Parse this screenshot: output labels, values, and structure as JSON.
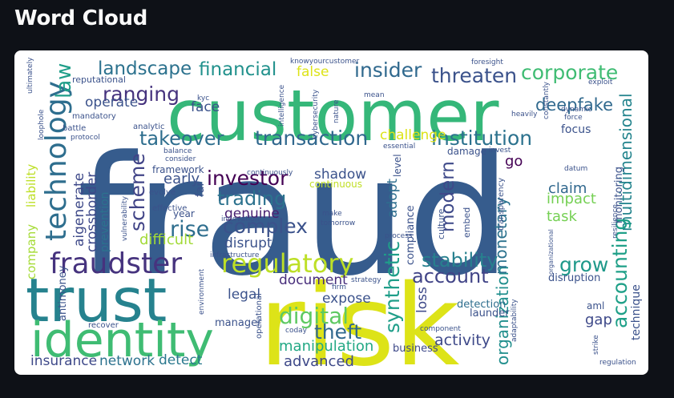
{
  "header": {
    "title": "Word Cloud"
  },
  "palette": {
    "page_bg": "#0e1117",
    "card_bg": "#ffffff",
    "title_color": "#fafafa"
  },
  "wordcloud": {
    "words": [
      {
        "text": "fraud",
        "color": "#365c8d"
      },
      {
        "text": "customer",
        "color": "#35b779"
      },
      {
        "text": "risk",
        "color": "#dde318"
      },
      {
        "text": "trust",
        "color": "#26828e"
      },
      {
        "text": "identity",
        "color": "#3fbc73"
      },
      {
        "text": "fraudster",
        "color": "#46337e"
      },
      {
        "text": "regulatory",
        "color": "#bddf26"
      },
      {
        "text": "technology",
        "color": "#2e6e8e"
      },
      {
        "text": "financial",
        "color": "#21918c"
      },
      {
        "text": "corporate",
        "color": "#3fbc73"
      },
      {
        "text": "insider",
        "color": "#30698e"
      },
      {
        "text": "threaten",
        "color": "#3b528b"
      },
      {
        "text": "landscape",
        "color": "#2c728e"
      },
      {
        "text": "ranging",
        "color": "#46337e"
      },
      {
        "text": "deepfake",
        "color": "#30698e"
      },
      {
        "text": "institution",
        "color": "#2c728e"
      },
      {
        "text": "takeover",
        "color": "#2e6e8e"
      },
      {
        "text": "transaction",
        "color": "#31688e"
      },
      {
        "text": "multidimensional",
        "color": "#25858e"
      },
      {
        "text": "investor",
        "color": "#440154"
      },
      {
        "text": "trading",
        "color": "#2c728e"
      },
      {
        "text": "complex",
        "color": "#3b528b"
      },
      {
        "text": "scheme",
        "color": "#414487"
      },
      {
        "text": "rise",
        "color": "#2e6e8e"
      },
      {
        "text": "stability",
        "color": "#27808e"
      },
      {
        "text": "account",
        "color": "#414487"
      },
      {
        "text": "grow",
        "color": "#1f998a"
      },
      {
        "text": "accounting",
        "color": "#1fa088"
      },
      {
        "text": "synthetic",
        "color": "#1f9e89"
      },
      {
        "text": "modern",
        "color": "#3e4989"
      },
      {
        "text": "digital",
        "color": "#5ec962"
      },
      {
        "text": "theft",
        "color": "#31688e"
      },
      {
        "text": "manipulation",
        "color": "#22a884"
      },
      {
        "text": "advanced",
        "color": "#3e4989"
      },
      {
        "text": "document",
        "color": "#472d7b"
      },
      {
        "text": "activity",
        "color": "#3e4989"
      },
      {
        "text": "organization",
        "color": "#218f8d"
      },
      {
        "text": "monetary",
        "color": "#2c728e"
      },
      {
        "text": "claim",
        "color": "#31688e"
      },
      {
        "text": "impact",
        "color": "#75d054"
      },
      {
        "text": "task",
        "color": "#75d054"
      },
      {
        "text": "genuine",
        "color": "#481f70"
      },
      {
        "text": "disrupt",
        "color": "#3b528b"
      },
      {
        "text": "legal",
        "color": "#3b528b"
      },
      {
        "text": "expose",
        "color": "#3b528b"
      },
      {
        "text": "detect",
        "color": "#2a788e"
      },
      {
        "text": "insurance",
        "color": "#3e4989"
      },
      {
        "text": "network",
        "color": "#2c728e"
      },
      {
        "text": "operate",
        "color": "#3b528b"
      },
      {
        "text": "face",
        "color": "#3b528b"
      },
      {
        "text": "early",
        "color": "#3b528b"
      },
      {
        "text": "difficult",
        "color": "#a2da37"
      },
      {
        "text": "aigenerate",
        "color": "#3e4989"
      },
      {
        "text": "crossborder",
        "color": "#3e4989"
      },
      {
        "text": "prevention",
        "color": "#2c728e"
      },
      {
        "text": "company",
        "color": "#a5db36"
      },
      {
        "text": "liability",
        "color": "#bddf26"
      },
      {
        "text": "law",
        "color": "#1f9e89"
      },
      {
        "text": "shadow",
        "color": "#3b528b"
      },
      {
        "text": "continuous",
        "color": "#c0df25"
      },
      {
        "text": "adopt",
        "color": "#2e6e8e"
      },
      {
        "text": "go",
        "color": "#440154"
      },
      {
        "text": "false",
        "color": "#dde318"
      },
      {
        "text": "challenge",
        "color": "#dde318"
      },
      {
        "text": "loss",
        "color": "#3e4989"
      },
      {
        "text": "detection",
        "color": "#2e6e8e"
      },
      {
        "text": "launder",
        "color": "#3b528b"
      },
      {
        "text": "gap",
        "color": "#3e4989"
      },
      {
        "text": "technique",
        "color": "#3b528b"
      },
      {
        "text": "focus",
        "color": "#3b528b"
      },
      {
        "text": "monitoring",
        "color": "#3b528b"
      },
      {
        "text": "disruption",
        "color": "#3b528b"
      },
      {
        "text": "business",
        "color": "#3e4989"
      },
      {
        "text": "manager",
        "color": "#3b528b"
      },
      {
        "text": "antimoney",
        "color": "#3b528b"
      },
      {
        "text": "framework",
        "color": "#3b528b"
      },
      {
        "text": "year",
        "color": "#3b528b"
      },
      {
        "text": "compliance",
        "color": "#3b528b"
      },
      {
        "text": "culture",
        "color": "#3b528b"
      },
      {
        "text": "embed",
        "color": "#3b528b"
      },
      {
        "text": "damage",
        "color": "#3b528b"
      },
      {
        "text": "aml",
        "color": "#3b528b"
      },
      {
        "text": "far",
        "color": "#3b528b"
      },
      {
        "text": "level",
        "color": "#3b528b"
      },
      {
        "text": "reputational",
        "color": "#3b528b"
      },
      {
        "text": "mandatory",
        "color": "#3b528b"
      },
      {
        "text": "battle",
        "color": "#3b528b"
      },
      {
        "text": "analytic",
        "color": "#3b528b"
      },
      {
        "text": "balance",
        "color": "#3b528b"
      },
      {
        "text": "consider",
        "color": "#3b528b"
      },
      {
        "text": "evolve",
        "color": "#3b528b"
      },
      {
        "text": "effective",
        "color": "#3b528b"
      },
      {
        "text": "innovation",
        "color": "#3b528b"
      },
      {
        "text": "infrastructure",
        "color": "#3b528b"
      },
      {
        "text": "continuously",
        "color": "#3b528b"
      },
      {
        "text": "make",
        "color": "#3b528b"
      },
      {
        "text": "tomorrow",
        "color": "#3b528b"
      },
      {
        "text": "process",
        "color": "#3b528b"
      },
      {
        "text": "invest",
        "color": "#3b528b"
      },
      {
        "text": "essential",
        "color": "#3b528b"
      },
      {
        "text": "cybersecurity",
        "color": "#3b528b"
      },
      {
        "text": "intelligence",
        "color": "#3b528b"
      },
      {
        "text": "nature",
        "color": "#3b528b"
      },
      {
        "text": "mean",
        "color": "#3b528b"
      },
      {
        "text": "knowyourcustomer",
        "color": "#3b528b"
      },
      {
        "text": "foresight",
        "color": "#3b528b"
      },
      {
        "text": "exploit",
        "color": "#3b528b"
      },
      {
        "text": "dynamic",
        "color": "#3b528b"
      },
      {
        "text": "force",
        "color": "#3b528b"
      },
      {
        "text": "heavily",
        "color": "#3b528b"
      },
      {
        "text": "constantly",
        "color": "#3b528b"
      },
      {
        "text": "datum",
        "color": "#3b528b"
      },
      {
        "text": "resilience",
        "color": "#3b528b"
      },
      {
        "text": "strategy",
        "color": "#3b528b"
      },
      {
        "text": "firm",
        "color": "#3b528b"
      },
      {
        "text": "environment",
        "color": "#3b528b"
      },
      {
        "text": "coday",
        "color": "#3b528b"
      },
      {
        "text": "operational",
        "color": "#3b528b"
      },
      {
        "text": "component",
        "color": "#3b528b"
      },
      {
        "text": "adaptability",
        "color": "#3b528b"
      },
      {
        "text": "strike",
        "color": "#3b528b"
      },
      {
        "text": "regulation",
        "color": "#3b528b"
      },
      {
        "text": "recover",
        "color": "#3b528b"
      },
      {
        "text": "ultimately",
        "color": "#3b528b"
      },
      {
        "text": "loophole",
        "color": "#3b528b"
      },
      {
        "text": "protocol",
        "color": "#3b528b"
      },
      {
        "text": "vulnerability",
        "color": "#3b528b"
      },
      {
        "text": "kyc",
        "color": "#3b528b"
      },
      {
        "text": "transparency",
        "color": "#3b528b"
      },
      {
        "text": "organizational",
        "color": "#3b528b"
      }
    ]
  }
}
